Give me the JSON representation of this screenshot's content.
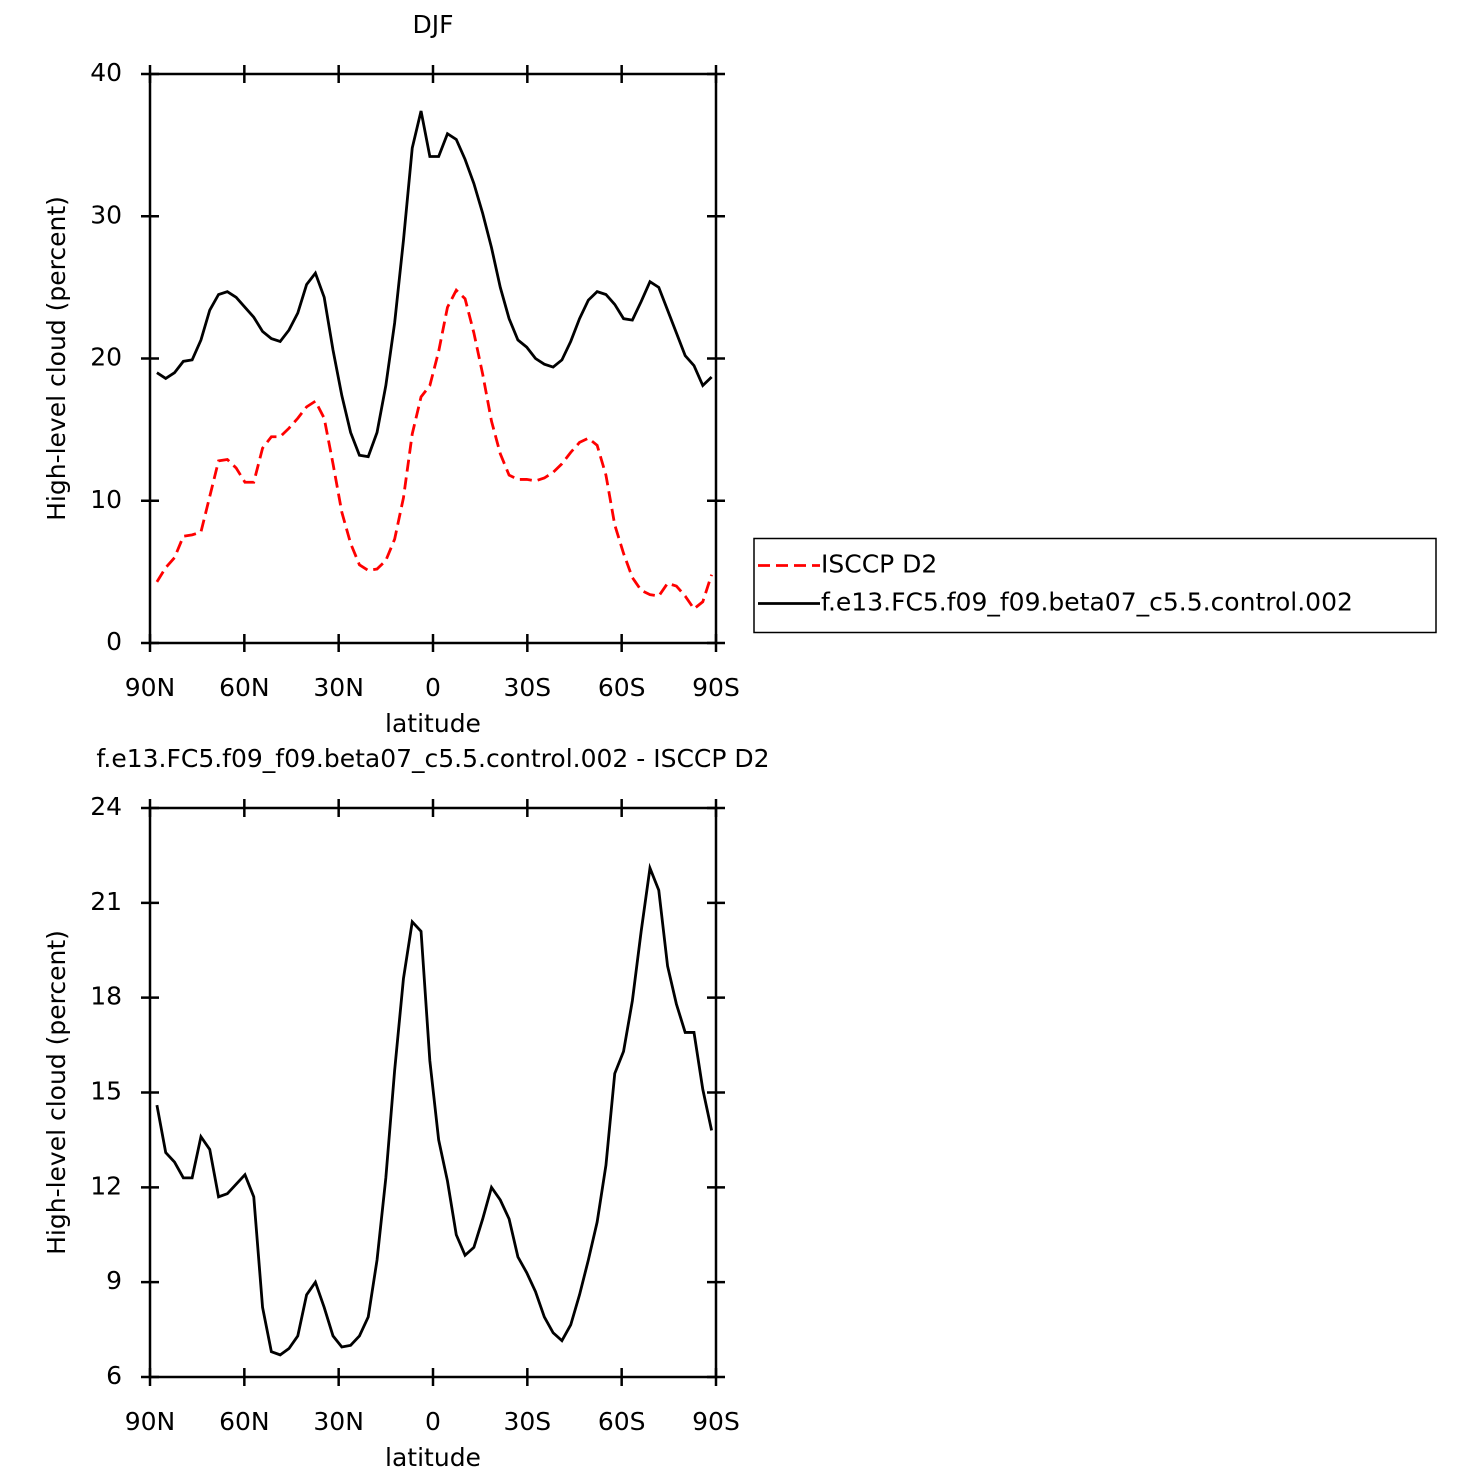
{
  "chart_data": [
    {
      "type": "line",
      "title": "DJF",
      "xlabel": "latitude",
      "ylabel": "High-level cloud (percent)",
      "xlim": [
        90,
        -90
      ],
      "xticks": [
        {
          "value": 90,
          "label": "90N"
        },
        {
          "value": 60,
          "label": "60N"
        },
        {
          "value": 30,
          "label": "30N"
        },
        0,
        {
          "value": -30,
          "label": "30S"
        },
        {
          "value": -60,
          "label": "60S"
        },
        {
          "value": -90,
          "label": "90S"
        }
      ],
      "ylim": [
        0,
        40
      ],
      "yticks": [
        0,
        10,
        20,
        30,
        40
      ],
      "legend": "right",
      "x": [
        87.8,
        85.0,
        82.2,
        79.4,
        76.6,
        73.8,
        71.0,
        68.2,
        65.4,
        62.6,
        59.8,
        57.0,
        54.2,
        51.4,
        48.6,
        45.8,
        43.0,
        40.2,
        37.4,
        34.6,
        31.8,
        29.0,
        26.2,
        23.4,
        20.6,
        17.8,
        15.0,
        12.2,
        9.4,
        6.6,
        3.8,
        1.0,
        -1.8,
        -4.6,
        -7.4,
        -10.2,
        -13.0,
        -15.8,
        -18.6,
        -21.4,
        -24.2,
        -27.0,
        -29.8,
        -32.6,
        -35.4,
        -38.2,
        -41.0,
        -43.8,
        -46.6,
        -49.4,
        -52.2,
        -55.0,
        -57.8,
        -60.6,
        -63.4,
        -66.2,
        -69.0,
        -71.8,
        -74.6,
        -77.4,
        -80.2,
        -83.0,
        -85.8,
        -88.6
      ],
      "series": [
        {
          "name": "ISCCP D2",
          "color": "#ff0000",
          "line_style": "dashed",
          "values": [
            4.3,
            5.3,
            6.0,
            7.5,
            7.6,
            7.8,
            10.3,
            12.8,
            12.9,
            12.3,
            11.3,
            11.3,
            13.7,
            14.5,
            14.5,
            15.1,
            15.8,
            16.6,
            17.0,
            15.8,
            12.6,
            9.2,
            7.0,
            5.5,
            5.1,
            5.2,
            5.8,
            7.3,
            10.2,
            14.7,
            17.3,
            18.1,
            20.5,
            23.6,
            24.8,
            24.2,
            21.8,
            18.9,
            15.6,
            13.3,
            11.8,
            11.5,
            11.5,
            11.4,
            11.6,
            12.0,
            12.6,
            13.4,
            14.1,
            14.4,
            13.9,
            11.8,
            8.3,
            6.3,
            4.6,
            3.7,
            3.4,
            3.3,
            4.2,
            4.0,
            3.3,
            2.4,
            2.9,
            4.8
          ]
        },
        {
          "name": "f.e13.FC5.f09_f09.beta07_c5.5.control.002",
          "color": "#000000",
          "line_style": "solid",
          "values": [
            19.0,
            18.6,
            19.0,
            19.8,
            19.9,
            21.3,
            23.4,
            24.5,
            24.7,
            24.3,
            23.6,
            22.9,
            21.9,
            21.4,
            21.2,
            22.0,
            23.2,
            25.2,
            26.0,
            24.3,
            20.6,
            17.4,
            14.8,
            13.2,
            13.1,
            14.8,
            18.1,
            22.5,
            28.3,
            34.8,
            37.4,
            34.2,
            34.2,
            35.8,
            35.4,
            34.0,
            32.3,
            30.2,
            27.8,
            25.0,
            22.8,
            21.3,
            20.8,
            20.0,
            19.6,
            19.4,
            19.9,
            21.2,
            22.8,
            24.1,
            24.7,
            24.5,
            23.8,
            22.8,
            22.7,
            24.0,
            25.4,
            25.0,
            23.4,
            21.8,
            20.2,
            19.5,
            18.1,
            18.7
          ]
        }
      ]
    },
    {
      "type": "line",
      "title": "f.e13.FC5.f09_f09.beta07_c5.5.control.002 - ISCCP D2",
      "xlabel": "latitude",
      "ylabel": "High-level cloud (percent)",
      "xlim": [
        90,
        -90
      ],
      "xticks": [
        {
          "value": 90,
          "label": "90N"
        },
        {
          "value": 60,
          "label": "60N"
        },
        {
          "value": 30,
          "label": "30N"
        },
        0,
        {
          "value": -30,
          "label": "30S"
        },
        {
          "value": -60,
          "label": "60S"
        },
        {
          "value": -90,
          "label": "90S"
        }
      ],
      "ylim": [
        6,
        24
      ],
      "yticks": [
        6,
        9,
        12,
        15,
        18,
        21,
        24
      ],
      "x": [
        87.8,
        85.0,
        82.2,
        79.4,
        76.6,
        73.8,
        71.0,
        68.2,
        65.4,
        62.6,
        59.8,
        57.0,
        54.2,
        51.4,
        48.6,
        45.8,
        43.0,
        40.2,
        37.4,
        34.6,
        31.8,
        29.0,
        26.2,
        23.4,
        20.6,
        17.8,
        15.0,
        12.2,
        9.4,
        6.6,
        3.8,
        1.0,
        -1.8,
        -4.6,
        -7.4,
        -10.2,
        -13.0,
        -15.8,
        -18.6,
        -21.4,
        -24.2,
        -27.0,
        -29.8,
        -32.6,
        -35.4,
        -38.2,
        -41.0,
        -43.8,
        -46.6,
        -49.4,
        -52.2,
        -55.0,
        -57.8,
        -60.6,
        -63.4,
        -66.2,
        -69.0,
        -71.8,
        -74.6,
        -77.4,
        -80.2,
        -83.0,
        -85.8,
        -88.6
      ],
      "color": "#000000",
      "values": [
        14.6,
        13.1,
        12.8,
        12.3,
        12.3,
        13.6,
        13.2,
        11.7,
        11.8,
        12.1,
        12.4,
        11.7,
        8.2,
        6.8,
        6.7,
        6.9,
        7.3,
        8.6,
        9.0,
        8.2,
        7.3,
        6.95,
        7.0,
        7.3,
        7.9,
        9.7,
        12.3,
        15.7,
        18.6,
        20.4,
        20.1,
        16.0,
        13.5,
        12.2,
        10.5,
        9.85,
        10.1,
        11.0,
        12.0,
        11.6,
        11.0,
        9.8,
        9.3,
        8.7,
        7.9,
        7.4,
        7.15,
        7.65,
        8.6,
        9.7,
        10.9,
        12.7,
        15.6,
        16.3,
        17.9,
        20.1,
        22.1,
        21.4,
        19.0,
        17.8,
        16.9,
        16.9,
        15.1,
        13.8
      ]
    }
  ]
}
